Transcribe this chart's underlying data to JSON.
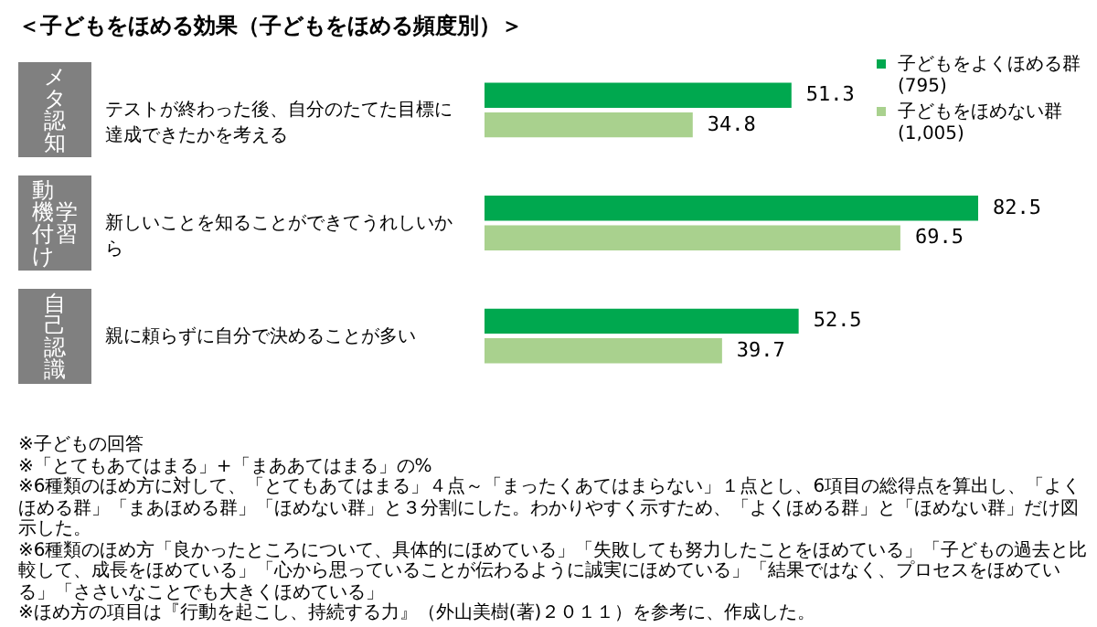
{
  "chart_data": {
    "type": "bar",
    "orientation": "horizontal",
    "title": "＜子どもをほめる効果（子どもをほめる頻度別）＞",
    "categories": [
      "テストが終わった後、自分のたてた目標に達成できたかを考える",
      "新しいことを知ることができてうれしいから",
      "親に頼らずに自分で決めることが多い"
    ],
    "series": [
      {
        "name": "子どもをよくほめる群 (795)",
        "color": "#00a84f",
        "values": [
          51.3,
          82.5,
          52.5
        ]
      },
      {
        "name": "子どもをほめない群 (1,005)",
        "color": "#a9d18e",
        "values": [
          34.8,
          69.5,
          39.7
        ]
      }
    ],
    "data_labels": true,
    "legend": "top right",
    "annotations": [
      "メタ認知",
      "学習動機付け",
      "自己認識",
      "※子どもの回答",
      "※「とてもあてはまる」+「まああてはまる」の%",
      "※6種類のほめ方に対して、「とてもあてはまる」４点～「まったくあてはまらない」１点とし、6項目の総得点を算出し、「よくほめる群」「まあほめる群」「ほめない群」と３分割にした。わかりやすく示すため、「よくほめる群」と「ほめない群」だけ図示した。",
      "※6種類のほめ方「良かったところについて、具体的にほめている」「失敗しても努力したことをほめている」「子どもの過去と比較して、成長をほめている」「心から思っていることが伝わるように誠実にほめている」「結果ではなく、プロセスをほめている」「ささいなことでも大きくほめている」",
      "※ほめ方の項目は『行動を起こし、持続する力』（外山美樹(著)２０１１）を参考に、作成した。"
    ]
  }
}
